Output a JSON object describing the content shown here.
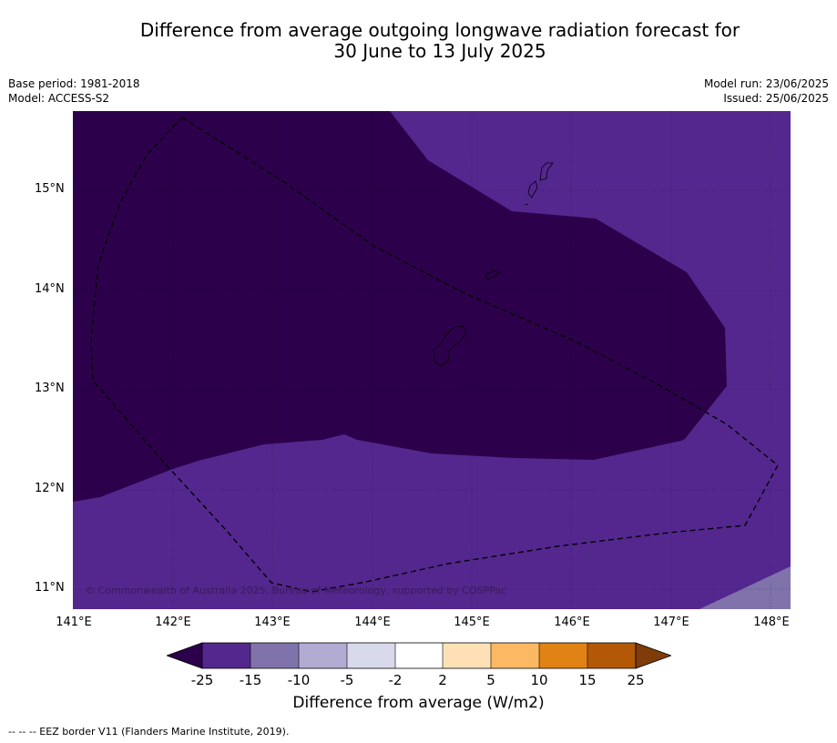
{
  "title_line1": "Difference from average outgoing longwave radiation forecast for",
  "title_line2": "30 June to 13 July 2025",
  "meta_left": [
    "Base period: 1981-2018",
    "Model: ACCESS-S2"
  ],
  "meta_right": [
    "Model run: 23/06/2025",
    "Issued: 25/06/2025"
  ],
  "lat_labels": [
    "15°N",
    "14°N",
    "13°N",
    "12°N",
    "11°N"
  ],
  "lon_labels": [
    "141°E",
    "142°E",
    "143°E",
    "144°E",
    "145°E",
    "146°E",
    "147°E",
    "148°E"
  ],
  "copyright": "© Commonwealth of Australia 2025, Bureau of Meteorology, supported by COSPPac",
  "colorbar": {
    "ticks": [
      "-25",
      "-15",
      "-10",
      "-5",
      "-2",
      "2",
      "5",
      "10",
      "15",
      "25"
    ],
    "colors": [
      "#54278f",
      "#8073ac",
      "#b2abd2",
      "#d8daeb",
      "#ffffff",
      "#fee0b6",
      "#fdb863",
      "#e08214",
      "#b35806"
    ],
    "under_color": "#2d004b",
    "over_color": "#7f3b08",
    "label": "Difference from average (W/m2)"
  },
  "footer": "-- -- -- EEZ border V11 (Flanders Marine Institute, 2019).",
  "map_colors": {
    "strong_negative": "#2d004b",
    "negative": "#54278f",
    "mild_negative": "#8073ac"
  }
}
